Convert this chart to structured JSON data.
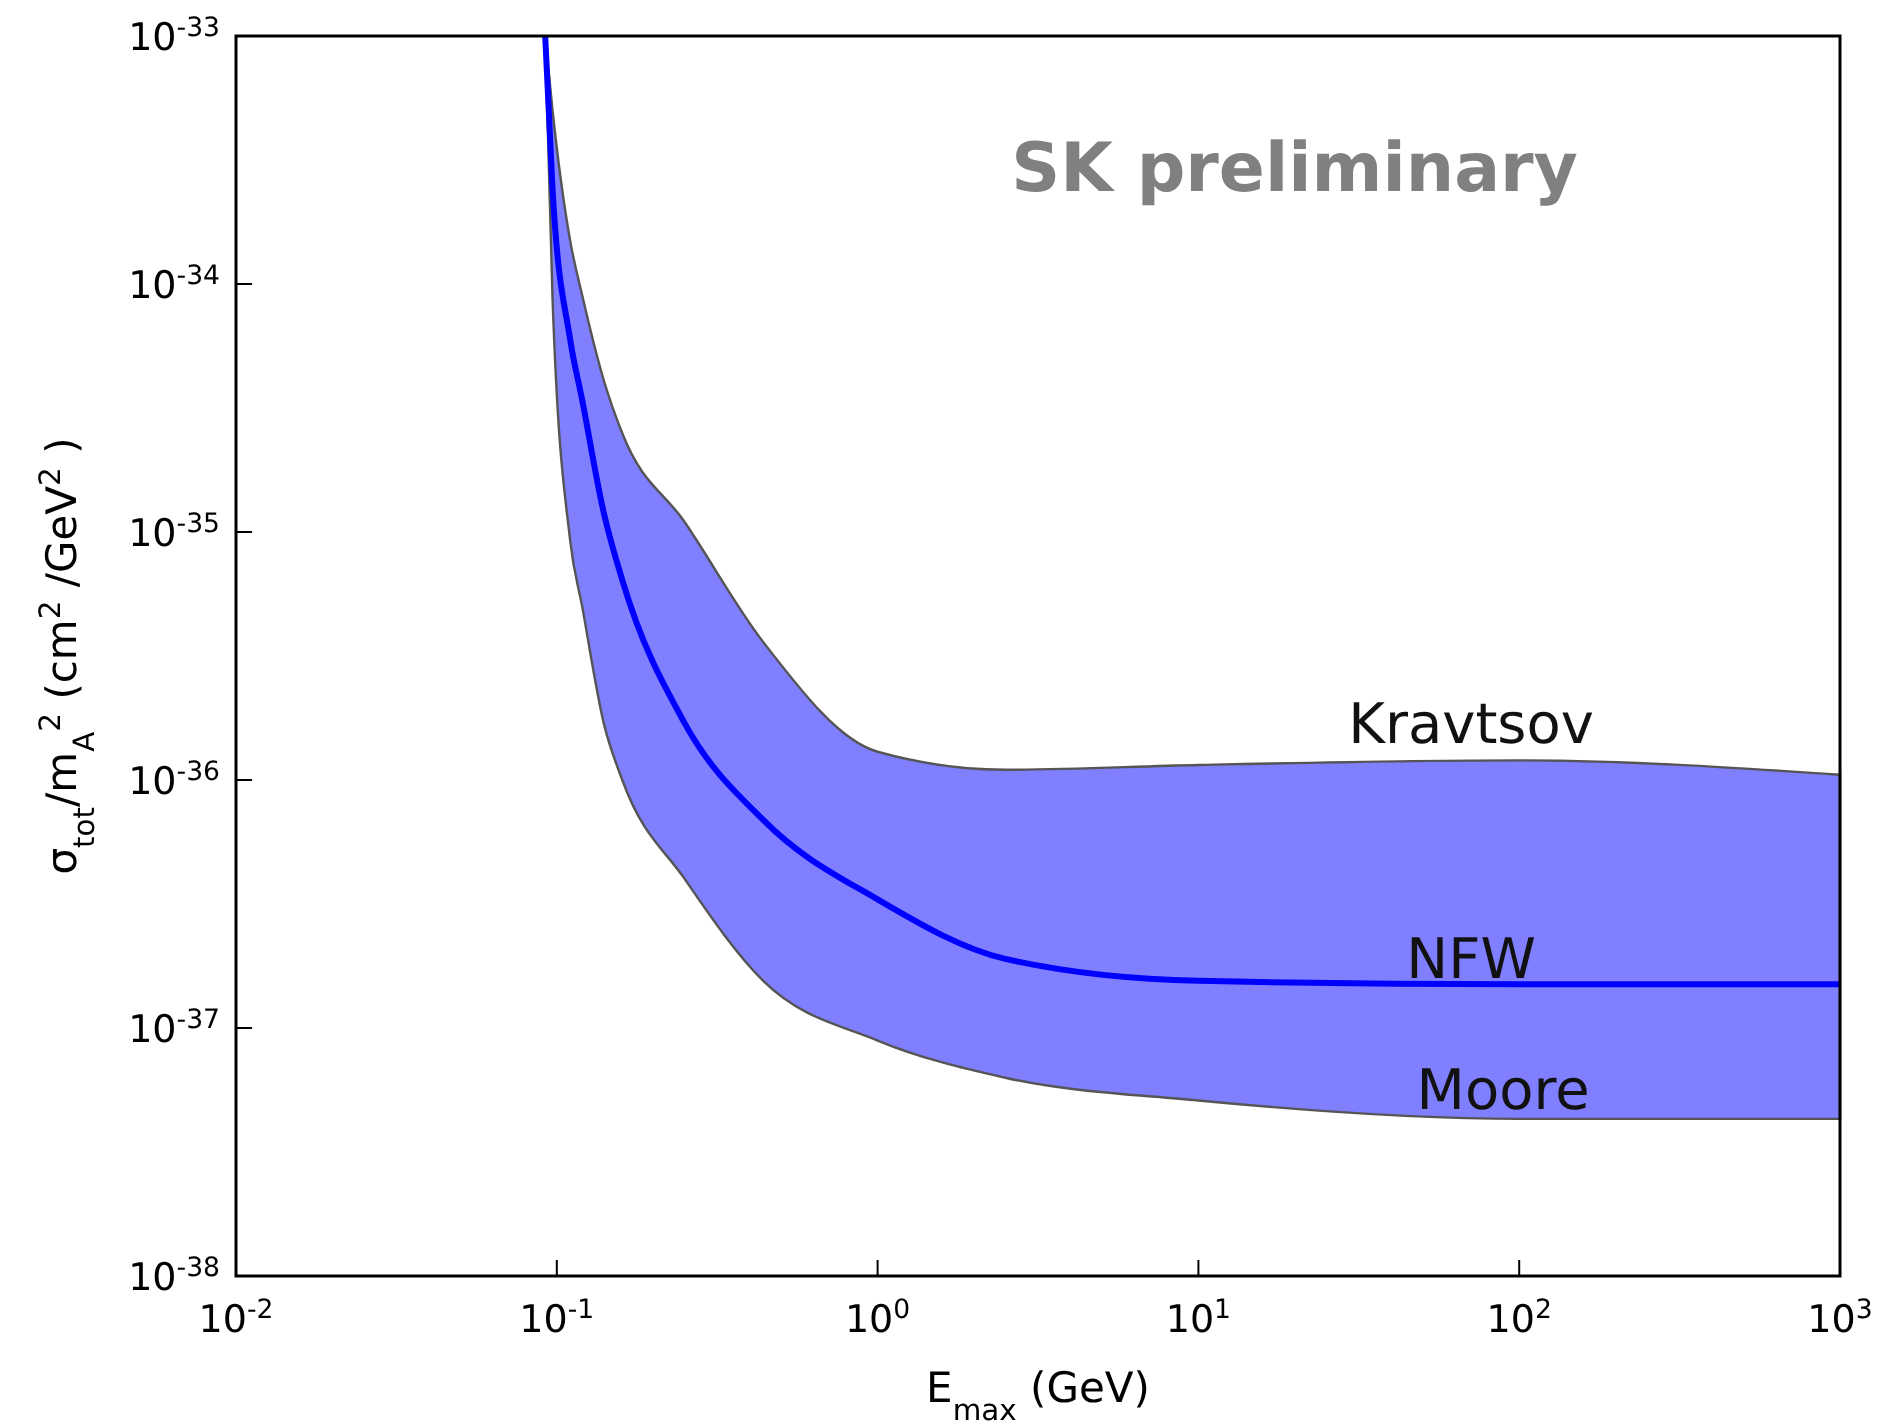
{
  "chart_data": {
    "type": "line",
    "xlabel": "E$_{max}$ (GeV)",
    "ylabel": "σ$_{tot}$/m$_{A}$$^{2}$  (cm$^{2}$ /GeV$^{2}$ )",
    "log": "xy",
    "xlim": [
      0.01,
      1000
    ],
    "ylim": [
      1e-38,
      1e-33
    ],
    "xticks": [
      {
        "value": 0.01,
        "label": "10$^{-2}$"
      },
      {
        "value": 0.1,
        "label": "10$^{-1}$"
      },
      {
        "value": 1,
        "label": "10$^{0}$"
      },
      {
        "value": 10,
        "label": "10$^{1}$"
      },
      {
        "value": 100,
        "label": "10$^{2}$"
      },
      {
        "value": 1000,
        "label": "10$^{3}$"
      }
    ],
    "yticks": [
      {
        "value": 1e-38,
        "label": "10$^{-38}$"
      },
      {
        "value": 1e-37,
        "label": "10$^{-37}$"
      },
      {
        "value": 1e-36,
        "label": "10$^{-36}$"
      },
      {
        "value": 1e-35,
        "label": "10$^{-35}$"
      },
      {
        "value": 1e-34,
        "label": "10$^{-34}$"
      },
      {
        "value": 1e-33,
        "label": "10$^{-33}$"
      }
    ],
    "grid": false,
    "marker": "none",
    "line_style": "solid",
    "series": [
      {
        "color": "#0000ff",
        "x": [
          0.092,
          0.097,
          0.11,
          0.12,
          0.14,
          0.16,
          0.25,
          0.44,
          1,
          2.5,
          10,
          100,
          1000
        ],
        "values": [
          1e-33,
          2.4e-34,
          6e-35,
          3.4e-35,
          1.2e-35,
          6.4e-36,
          1.7e-36,
          6.9e-37,
          3.3e-37,
          1.9e-37,
          1.55e-37,
          1.5e-37,
          1.5e-37
        ],
        "lower": [
          1e-33,
          8.7e-35,
          9.3e-36,
          5e-36,
          1.7e-36,
          1e-36,
          4e-37,
          1.55e-37,
          8.9e-38,
          6.3e-38,
          5.1e-38,
          4.3e-38,
          4.3e-38
        ],
        "upper": [
          1e-33,
          5e-34,
          1.5e-34,
          9e-35,
          4.1e-35,
          2.5e-35,
          1.1e-35,
          3.6e-36,
          1.3e-36,
          1.1e-36,
          1.15e-36,
          1.2e-36,
          1.05e-36
        ]
      }
    ],
    "annotations": [
      "Kravtsov",
      "NFW",
      "Moore",
      "SK preliminary"
    ]
  }
}
